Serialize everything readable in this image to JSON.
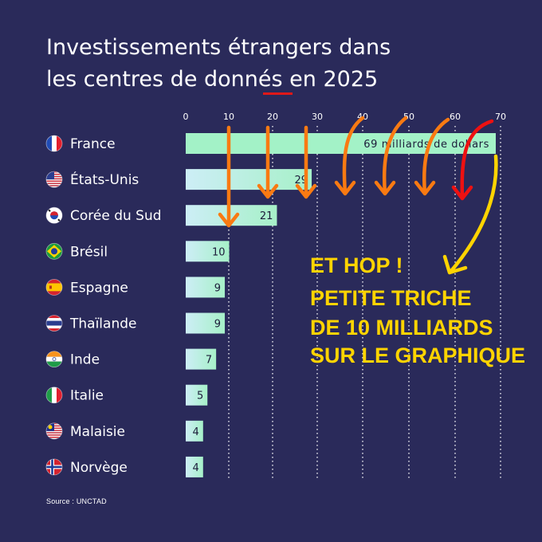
{
  "title_lines": [
    "Investissements étrangers dans",
    "les centres de donnés en 2025"
  ],
  "source": "Source : UNCTAD",
  "annotation_lines": [
    "ET HOP !",
    "PETITE TRICHE",
    "DE 10 MILLIARDS",
    "SUR LE GRAPHIQUE"
  ],
  "colors": {
    "background": "#2a2a5a",
    "bar_start": "#cdeef6",
    "bar_end": "#a6f0c8",
    "first_bar": "#a3f2c7",
    "arrow_orange": "#f97a12",
    "arrow_red": "#ee1111",
    "arrow_yellow": "#ffd400",
    "underline_red": "#e01818"
  },
  "chart_data": {
    "type": "bar",
    "orientation": "horizontal",
    "categories": [
      "France",
      "États-Unis",
      "Corée du Sud",
      "Brésil",
      "Espagne",
      "Thaïlande",
      "Inde",
      "Italie",
      "Malaisie",
      "Norvège"
    ],
    "values": [
      69,
      29,
      21,
      10,
      9,
      9,
      7,
      5,
      4,
      4
    ],
    "value_labels": [
      "69 milliards de dollars",
      "29",
      "21",
      "10",
      "9",
      "9",
      "7",
      "5",
      "4",
      "4"
    ],
    "flags": [
      "flag-france",
      "flag-usa",
      "flag-south-korea",
      "flag-brazil",
      "flag-spain",
      "flag-thailand",
      "flag-india",
      "flag-italy",
      "flag-malaysia",
      "flag-norway"
    ],
    "xticks": [
      0,
      10,
      20,
      30,
      40,
      50,
      60,
      70
    ],
    "xtick_labels": [
      "0",
      "10",
      "20",
      "30",
      "40",
      "50",
      "60",
      "70"
    ],
    "xlim": [
      0,
      70
    ],
    "grid": "vertical dotted",
    "annotation": "axis scale manipulated: gridlines spaced so 69 reaches 70",
    "unit": "milliards de dollars"
  }
}
